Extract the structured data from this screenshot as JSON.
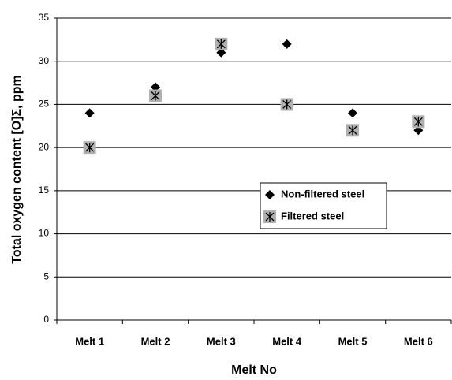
{
  "chart_data": {
    "type": "scatter",
    "x_label": "Melt No",
    "y_label": "Total oxygen content  [O]Σ, ppm",
    "categories": [
      "Melt 1",
      "Melt 2",
      "Melt 3",
      "Melt 4",
      "Melt 5",
      "Melt 6"
    ],
    "series": [
      {
        "name": "Non-filtered steel",
        "color": "#000000",
        "values": [
          24,
          27,
          31,
          32,
          24,
          22
        ]
      },
      {
        "name": "Filtered steel",
        "color": "#b0b0b0",
        "values": [
          20,
          26,
          32,
          25,
          22,
          23
        ]
      }
    ],
    "ylim": [
      0,
      35
    ],
    "yticks": [
      0,
      5,
      10,
      15,
      20,
      25,
      30,
      35
    ],
    "grid": true,
    "legend": "center-right"
  }
}
